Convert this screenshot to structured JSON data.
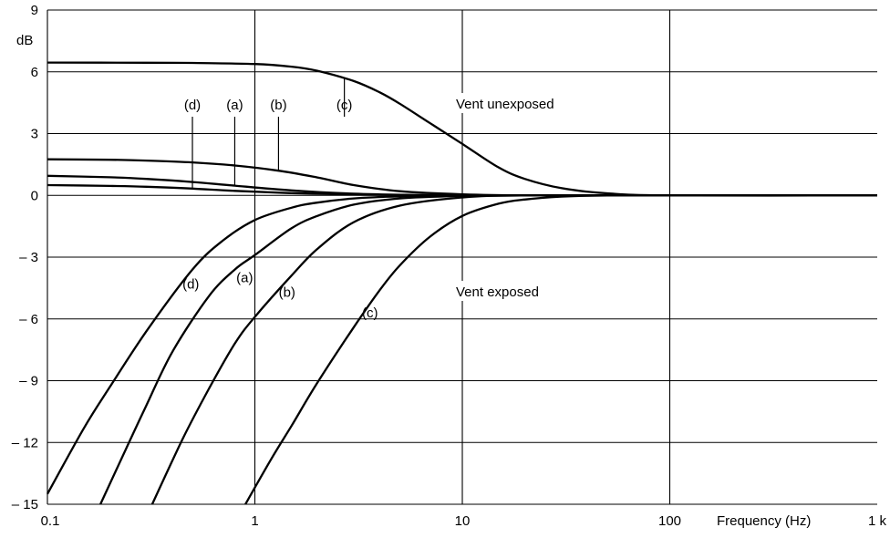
{
  "chart_data": {
    "type": "line",
    "title": "",
    "x_scale": "log",
    "xlim": [
      0.1,
      1000
    ],
    "ylim": [
      -15,
      9
    ],
    "xlabel": "Frequency (Hz)",
    "ylabel": "dB",
    "x_ticks": [
      {
        "value": 0.1,
        "label": "0.1"
      },
      {
        "value": 1,
        "label": "1"
      },
      {
        "value": 10,
        "label": "10"
      },
      {
        "value": 100,
        "label": "100"
      },
      {
        "value": 1000,
        "label": "1 k"
      }
    ],
    "y_ticks": [
      {
        "value": 9,
        "label": "9"
      },
      {
        "value": 6,
        "label": "6"
      },
      {
        "value": 3,
        "label": "3"
      },
      {
        "value": 0,
        "label": "0"
      },
      {
        "value": -3,
        "label": "– 3"
      },
      {
        "value": -6,
        "label": "– 6"
      },
      {
        "value": -9,
        "label": "– 9"
      },
      {
        "value": -12,
        "label": "– 12"
      },
      {
        "value": -15,
        "label": "– 15"
      }
    ],
    "grid": true,
    "annotations": {
      "vent_unexposed": "Vent unexposed",
      "vent_exposed": "Vent exposed"
    },
    "series": [
      {
        "group": "unexposed",
        "label": "(d)",
        "x": [
          0.1,
          0.2,
          0.3,
          0.5,
          0.8,
          1.5,
          3,
          6,
          10,
          20,
          100,
          1000
        ],
        "y": [
          0.5,
          0.46,
          0.42,
          0.33,
          0.22,
          0.11,
          0.04,
          0.01,
          0,
          0,
          0,
          0
        ]
      },
      {
        "group": "unexposed",
        "label": "(a)",
        "x": [
          0.1,
          0.2,
          0.3,
          0.5,
          0.8,
          1.5,
          3,
          6,
          10,
          20,
          100,
          1000
        ],
        "y": [
          0.95,
          0.88,
          0.8,
          0.65,
          0.47,
          0.24,
          0.08,
          0.02,
          0,
          0,
          0,
          0
        ]
      },
      {
        "group": "unexposed",
        "label": "(b)",
        "x": [
          0.1,
          0.2,
          0.3,
          0.5,
          0.8,
          1.3,
          2,
          3,
          5,
          10,
          20,
          100,
          1000
        ],
        "y": [
          1.75,
          1.73,
          1.69,
          1.6,
          1.45,
          1.2,
          0.87,
          0.5,
          0.2,
          0.05,
          0,
          0,
          0
        ]
      },
      {
        "group": "unexposed",
        "label": "(c)",
        "x": [
          0.1,
          0.3,
          0.5,
          1,
          1.5,
          2,
          3,
          4,
          5,
          7,
          10,
          15,
          20,
          30,
          50,
          100,
          1000
        ],
        "y": [
          6.45,
          6.44,
          6.43,
          6.38,
          6.25,
          6.05,
          5.55,
          5.0,
          4.45,
          3.5,
          2.5,
          1.35,
          0.8,
          0.35,
          0.1,
          0,
          0
        ]
      },
      {
        "group": "exposed",
        "label": "(d)",
        "x": [
          0.1,
          0.15,
          0.2,
          0.3,
          0.5,
          0.7,
          1,
          1.5,
          2,
          3,
          5,
          10,
          20,
          100,
          1000
        ],
        "y": [
          -14.5,
          -11.3,
          -9.3,
          -6.6,
          -3.6,
          -2.2,
          -1.2,
          -0.6,
          -0.35,
          -0.15,
          -0.05,
          0,
          0,
          0,
          0
        ]
      },
      {
        "group": "exposed",
        "label": "(a)",
        "x": [
          0.18,
          0.25,
          0.3,
          0.4,
          0.6,
          0.8,
          1,
          1.5,
          2,
          3,
          5,
          10,
          20,
          100,
          1000
        ],
        "y": [
          -15,
          -11.9,
          -10.2,
          -7.6,
          -4.9,
          -3.6,
          -2.9,
          -1.6,
          -1.0,
          -0.45,
          -0.15,
          -0.03,
          0,
          0,
          0
        ]
      },
      {
        "group": "exposed",
        "label": "(b)",
        "x": [
          0.32,
          0.45,
          0.6,
          0.8,
          1,
          1.5,
          2,
          3,
          5,
          10,
          20,
          100,
          1000
        ],
        "y": [
          -15,
          -11.8,
          -9.4,
          -7.2,
          -5.9,
          -3.9,
          -2.6,
          -1.3,
          -0.5,
          -0.1,
          0,
          0,
          0
        ]
      },
      {
        "group": "exposed",
        "label": "(c)",
        "x": [
          0.9,
          1.2,
          1.5,
          2,
          3,
          4,
          5,
          7,
          10,
          15,
          20,
          30,
          50,
          100,
          1000
        ],
        "y": [
          -15,
          -12.8,
          -11.2,
          -9.1,
          -6.4,
          -4.6,
          -3.4,
          -2.0,
          -1.0,
          -0.4,
          -0.2,
          -0.06,
          0,
          0,
          0
        ]
      }
    ],
    "curve_labels": [
      {
        "label": "(d)",
        "group": "unexposed",
        "series": 0,
        "at_x": 0.5
      },
      {
        "label": "(a)",
        "group": "unexposed",
        "series": 1,
        "at_x": 0.8
      },
      {
        "label": "(b)",
        "group": "unexposed",
        "series": 2,
        "at_x": 1.3
      },
      {
        "label": "(c)",
        "group": "unexposed",
        "series": 3,
        "at_x": 2.7
      },
      {
        "label": "(d)",
        "group": "exposed",
        "series": 4,
        "at_x": 0.55
      },
      {
        "label": "(a)",
        "group": "exposed",
        "series": 5,
        "at_x": 1.0
      },
      {
        "label": "(b)",
        "group": "exposed",
        "series": 6,
        "at_x": 1.6
      },
      {
        "label": "(c)",
        "group": "exposed",
        "series": 7,
        "at_x": 4.0
      }
    ]
  }
}
